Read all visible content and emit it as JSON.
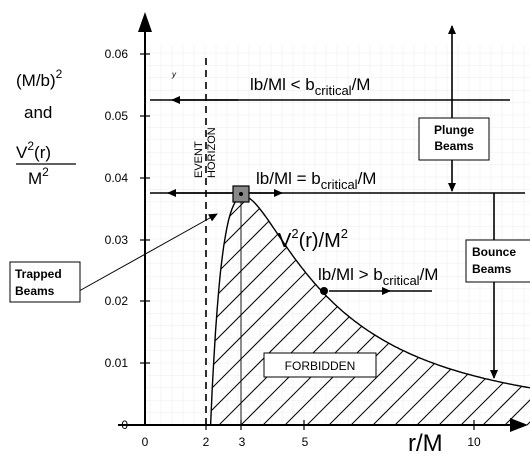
{
  "y_axis": {
    "title_line1": "(M/b)",
    "title_line1_sup": "2",
    "title_line2": "and",
    "title_frac_num": "V",
    "title_frac_num_sup": "2",
    "title_frac_num_tail": "(r)",
    "title_frac_den": "M",
    "title_frac_den_sup": "2",
    "ticks": [
      "0",
      "0.01",
      "0.02",
      "0.03",
      "0.04",
      "0.05",
      "0.06"
    ]
  },
  "x_axis": {
    "title": "r/M",
    "ticks": [
      "0",
      "2",
      "3",
      "5",
      "10"
    ]
  },
  "labels": {
    "event_horizon_line1": "EVENT",
    "event_horizon_line2": "HORIZON",
    "lt_critical": "lb/Ml < b",
    "lt_critical_sub": "critical",
    "lt_critical_tail": "/M",
    "eq_critical": "lb/Ml = b",
    "eq_critical_sub": "critical",
    "eq_critical_tail": "/M",
    "gt_critical": "lb/Ml > b",
    "gt_critical_sub": "critical",
    "gt_critical_tail": "/M",
    "potential": "V",
    "potential_sup": "2",
    "potential_tail": "(r)/M",
    "potential_tail_sup": "2",
    "forbidden": "FORBIDDEN",
    "plunge_line1": "Plunge",
    "plunge_line2": "Beams",
    "bounce_line1": "Bounce",
    "bounce_line2": "Beams",
    "trapped_line1": "Trapped",
    "trapped_line2": "Beams",
    "stray_mark": "y"
  }
}
